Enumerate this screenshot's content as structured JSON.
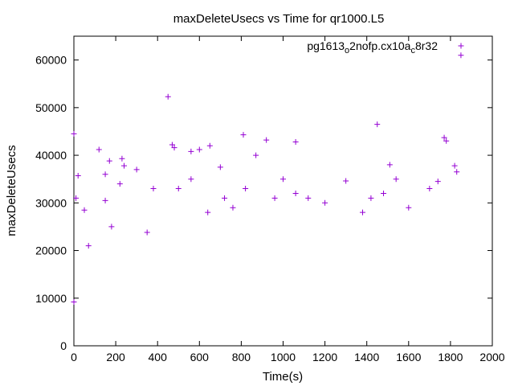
{
  "chart_data": {
    "type": "scatter",
    "title": "maxDeleteUsecs vs Time for qr1000.L5",
    "xlabel": "Time(s)",
    "ylabel": "maxDeleteUsecs",
    "xlim": [
      0,
      2000
    ],
    "ylim": [
      0,
      65000
    ],
    "xticks": [
      "0",
      "200",
      "400",
      "600",
      "800",
      "1000",
      "1200",
      "1400",
      "1600",
      "1800",
      "2000"
    ],
    "yticks": [
      "0",
      "10000",
      "20000",
      "30000",
      "40000",
      "50000",
      "60000"
    ],
    "grid": false,
    "legend_position": "top-right",
    "marker": "+",
    "series_color": "#9400d3",
    "series": [
      {
        "legend": {
          "base": "pg1613",
          "sub1": "o",
          "mid": "2nofp.cx10a",
          "sub2": "c",
          "tail": "8r32"
        },
        "points": [
          [
            0,
            9200
          ],
          [
            0,
            44500
          ],
          [
            10,
            31000
          ],
          [
            20,
            35700
          ],
          [
            50,
            28500
          ],
          [
            70,
            21000
          ],
          [
            120,
            41200
          ],
          [
            150,
            30500
          ],
          [
            170,
            38800
          ],
          [
            180,
            25000
          ],
          [
            230,
            39300
          ],
          [
            240,
            37800
          ],
          [
            300,
            37000
          ],
          [
            350,
            23800
          ],
          [
            450,
            52300
          ],
          [
            470,
            42200
          ],
          [
            480,
            41600
          ],
          [
            560,
            40800
          ],
          [
            600,
            41200
          ],
          [
            650,
            42000
          ],
          [
            700,
            37500
          ],
          [
            810,
            44300
          ],
          [
            870,
            40000
          ],
          [
            920,
            43200
          ],
          [
            1000,
            35000
          ],
          [
            1060,
            42800
          ],
          [
            1300,
            34600
          ],
          [
            1450,
            46500
          ],
          [
            1510,
            38000
          ],
          [
            1770,
            43700
          ],
          [
            1780,
            43000
          ],
          [
            1830,
            36500
          ],
          [
            150,
            36000
          ],
          [
            220,
            34000
          ],
          [
            380,
            33000
          ],
          [
            500,
            33000
          ],
          [
            560,
            35000
          ],
          [
            640,
            28000
          ],
          [
            720,
            31000
          ],
          [
            760,
            29000
          ],
          [
            820,
            33000
          ],
          [
            960,
            31000
          ],
          [
            1060,
            32000
          ],
          [
            1120,
            31000
          ],
          [
            1200,
            30000
          ],
          [
            1380,
            28000
          ],
          [
            1420,
            31000
          ],
          [
            1480,
            32000
          ],
          [
            1540,
            35000
          ],
          [
            1600,
            29000
          ],
          [
            1700,
            33000
          ],
          [
            1740,
            34500
          ],
          [
            1820,
            37800
          ],
          [
            1850,
            61000
          ]
        ]
      }
    ]
  }
}
